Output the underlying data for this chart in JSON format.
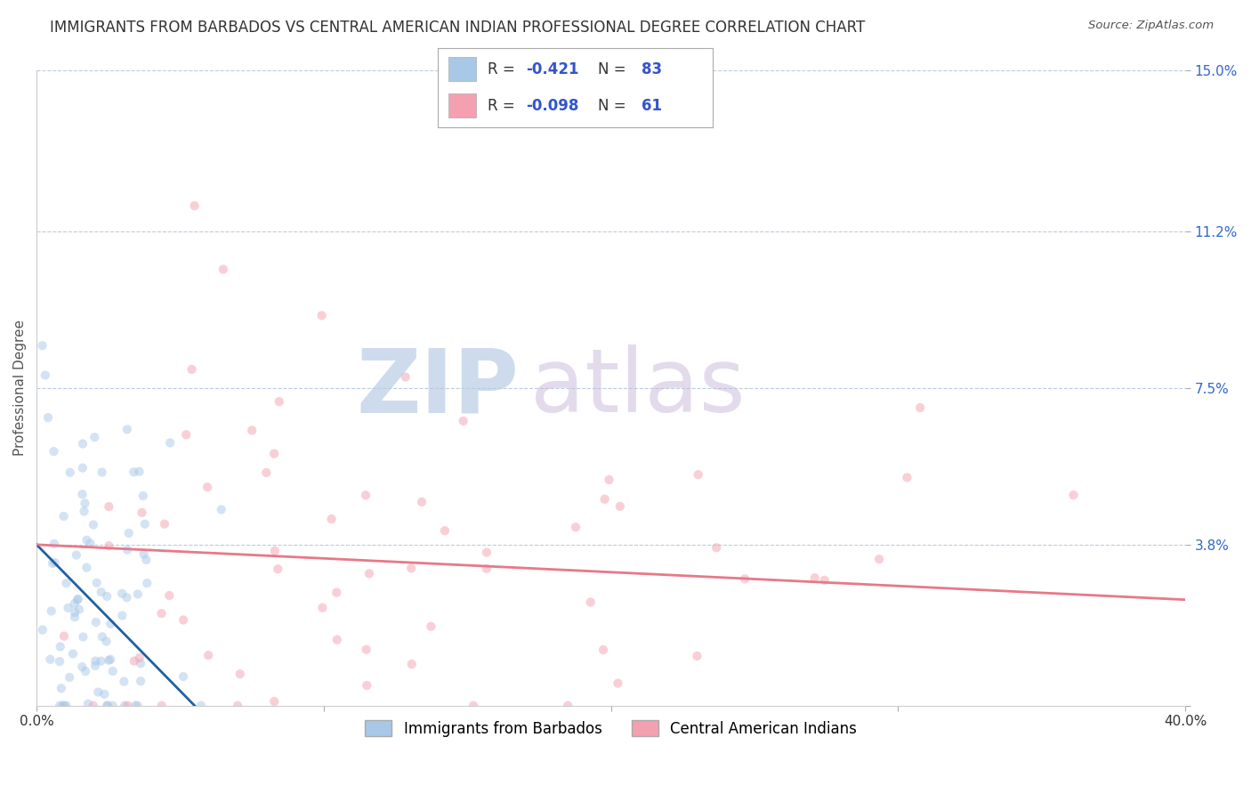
{
  "title": "IMMIGRANTS FROM BARBADOS VS CENTRAL AMERICAN INDIAN PROFESSIONAL DEGREE CORRELATION CHART",
  "source": "Source: ZipAtlas.com",
  "ylabel": "Professional Degree",
  "xlim": [
    0.0,
    0.4
  ],
  "ylim": [
    0.0,
    0.15
  ],
  "xtick_positions": [
    0.0,
    0.1,
    0.2,
    0.3,
    0.4
  ],
  "xtick_labels_show": [
    "0.0%",
    "",
    "",
    "",
    "40.0%"
  ],
  "ytick_positions": [
    0.0,
    0.038,
    0.075,
    0.112,
    0.15
  ],
  "ytick_labels": [
    "",
    "3.8%",
    "7.5%",
    "11.2%",
    "15.0%"
  ],
  "series1_color": "#a8c8e8",
  "series1_label": "Immigrants from Barbados",
  "series1_R": "-0.421",
  "series1_N": "83",
  "series1_line_color": "#2060a0",
  "series2_color": "#f4a0b0",
  "series2_label": "Central American Indians",
  "series2_R": "-0.098",
  "series2_N": "61",
  "series2_line_color": "#e87888",
  "background_color": "#ffffff",
  "grid_color": "#bbccdd",
  "watermark_zip": "ZIP",
  "watermark_atlas": "atlas",
  "watermark_color_zip": "#b8cce4",
  "watermark_color_atlas": "#c8b8d8",
  "title_fontsize": 12,
  "tick_fontsize": 11,
  "legend_fontsize": 12,
  "dot_size": 55,
  "dot_alpha": 0.5,
  "n1": 83,
  "n2": 61,
  "R1": -0.421,
  "R2": -0.098
}
